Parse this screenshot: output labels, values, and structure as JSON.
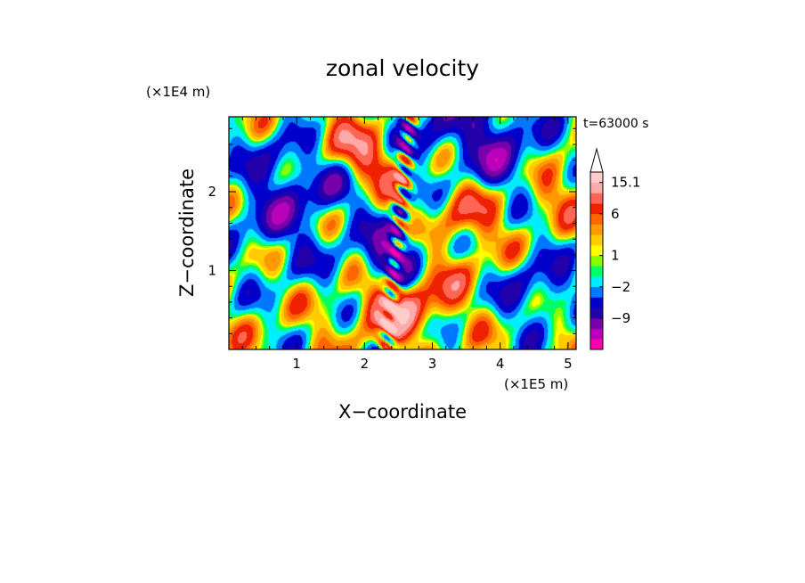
{
  "chart_data": {
    "type": "heatmap",
    "title": "zonal velocity",
    "xlabel": "X−coordinate",
    "ylabel": "Z−coordinate",
    "x_unit": "(×1E5 m)",
    "y_unit": "(×1E4 m)",
    "time_label": "t=63000 s",
    "xlim": [
      0,
      5.12
    ],
    "ylim": [
      0,
      2.95
    ],
    "x_ticks": [
      "1",
      "2",
      "3",
      "4",
      "5"
    ],
    "x_tick_values": [
      1,
      2,
      3,
      4,
      5
    ],
    "y_ticks": [
      "1",
      "2"
    ],
    "y_tick_values": [
      1,
      2
    ],
    "colorbar": {
      "colors": [
        "#ff00aa",
        "#bb00bb",
        "#7700aa",
        "#2200aa",
        "#0000cc",
        "#0077ff",
        "#00eeff",
        "#00ff66",
        "#88ff00",
        "#ffff00",
        "#ffcc00",
        "#ff9900",
        "#ff6600",
        "#ee2200",
        "#ff6655",
        "#ffaaaa",
        "#ffcccc"
      ],
      "labels": [
        "15.1",
        "6",
        "1",
        "−2",
        "−9"
      ],
      "label_values": [
        15.1,
        6,
        1,
        -2,
        -9
      ],
      "arrow_top": true
    },
    "features": [
      {
        "x": 2.45,
        "y": 1.2,
        "value": -10
      },
      {
        "x": 2.5,
        "y": 0.5,
        "value": 12
      },
      {
        "x": 2.2,
        "y": 2.4,
        "value": 8
      },
      {
        "x": 2.8,
        "y": 2.7,
        "value": -7
      },
      {
        "x": 1.4,
        "y": 2.05,
        "value": -6
      },
      {
        "x": 0.8,
        "y": 2.45,
        "value": -5
      },
      {
        "x": 0.6,
        "y": 1.7,
        "value": -6
      },
      {
        "x": 1.5,
        "y": 0.4,
        "value": 1
      },
      {
        "x": 0.4,
        "y": 0.2,
        "value": 1.5
      },
      {
        "x": 1.0,
        "y": 1.2,
        "value": -2
      },
      {
        "x": 3.5,
        "y": 1.7,
        "value": 6
      },
      {
        "x": 3.2,
        "y": 1.0,
        "value": 5
      },
      {
        "x": 4.0,
        "y": 2.4,
        "value": -7
      },
      {
        "x": 4.5,
        "y": 0.75,
        "value": -6
      },
      {
        "x": 4.9,
        "y": 2.0,
        "value": 4
      },
      {
        "x": 3.8,
        "y": 0.5,
        "value": 1
      },
      {
        "x": 1.6,
        "y": 2.7,
        "value": 5
      },
      {
        "x": 3.9,
        "y": 2.9,
        "value": -6
      }
    ]
  }
}
